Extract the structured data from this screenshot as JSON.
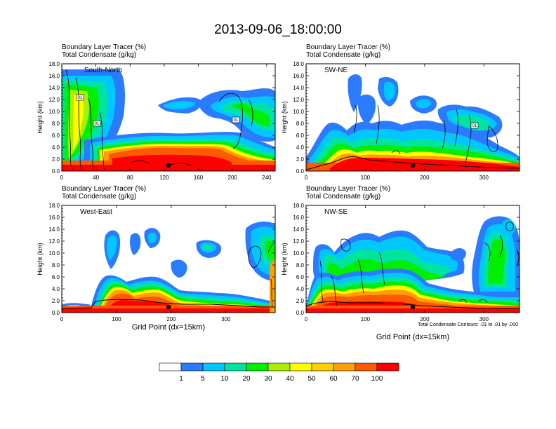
{
  "title": "2013-09-06_18:00:00",
  "field_label_1": "Boundary Layer Tracer    (%)",
  "field_label_2": "Total Condensate    (g/kg)",
  "y_axis_label": "Height (km)",
  "x_axis_label": "Grid Point (dx=15km)",
  "contour_note": "Total Condensate Contours: .01 to .01 by .000",
  "colorbar": {
    "colors": [
      "#ffffff",
      "#2b7bff",
      "#00c8ff",
      "#00e4a0",
      "#00ee00",
      "#a8f000",
      "#ffff00",
      "#ffd000",
      "#ffa000",
      "#ff5a00",
      "#ff0000"
    ],
    "labels": [
      "1",
      "5",
      "10",
      "20",
      "30",
      "40",
      "50",
      "60",
      "70",
      "100"
    ]
  },
  "chart_data": [
    {
      "type": "heatmap",
      "panel": "South-North",
      "ylim": [
        0,
        18
      ],
      "yticks": [
        "0.0",
        "2.0",
        "4.0",
        "6.0",
        "8.0",
        "10.0",
        "12.0",
        "14.0",
        "16.0",
        "18.0"
      ],
      "xlim": [
        0,
        250
      ],
      "xticks": [
        "0",
        "40",
        "80",
        "120",
        "160",
        "200",
        "240"
      ],
      "xtick_values": [
        0,
        40,
        80,
        120,
        160,
        200,
        240
      ],
      "contour_labels": [
        "01",
        "01",
        "01"
      ],
      "marker_x": 125
    },
    {
      "type": "heatmap",
      "panel": "SW-NE",
      "ylim": [
        0,
        18
      ],
      "yticks": [
        "0.0",
        "2.0",
        "4.0",
        "6.0",
        "8.0",
        "10.0",
        "12.0",
        "14.0",
        "16.0",
        "18.0"
      ],
      "xlim": [
        0,
        360
      ],
      "xticks": [
        "0",
        "100",
        "200",
        "300"
      ],
      "xtick_values": [
        0,
        100,
        200,
        300
      ],
      "contour_labels": [
        "01"
      ],
      "marker_x": 180
    },
    {
      "type": "heatmap",
      "panel": "West-East",
      "ylim": [
        0,
        18
      ],
      "yticks": [
        "0.0",
        "2.0",
        "4.0",
        "6.0",
        "8.0",
        "10.0",
        "12.0",
        "14.0",
        "16.0",
        "18.0"
      ],
      "xlim": [
        0,
        390
      ],
      "xticks": [
        "0",
        "100",
        "200",
        "300"
      ],
      "xtick_values": [
        0,
        100,
        200,
        300
      ],
      "contour_labels": [],
      "marker_x": 195
    },
    {
      "type": "heatmap",
      "panel": "NW-SE",
      "ylim": [
        0,
        18
      ],
      "yticks": [
        "0.0",
        "2.0",
        "4.0",
        "6.0",
        "8.0",
        "10.0",
        "12.0",
        "14.0",
        "16.0",
        "18.0"
      ],
      "xlim": [
        0,
        360
      ],
      "xticks": [
        "0",
        "100",
        "200",
        "300"
      ],
      "xtick_values": [
        0,
        100,
        200,
        300
      ],
      "contour_labels": [],
      "marker_x": 180
    }
  ]
}
